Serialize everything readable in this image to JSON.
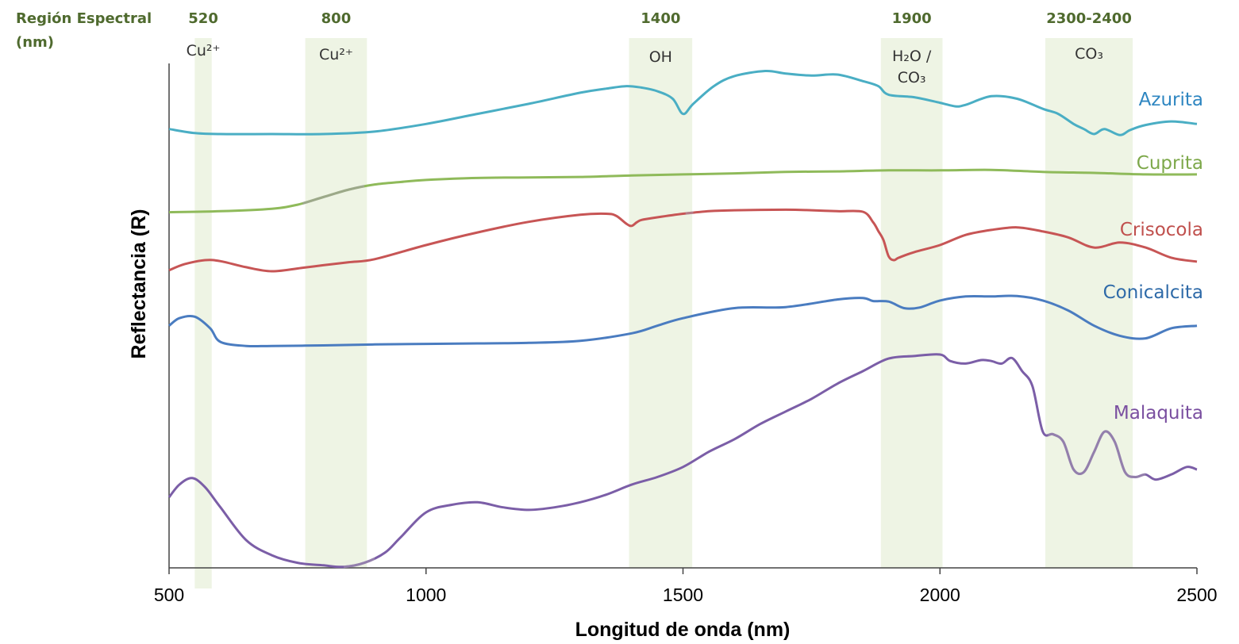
{
  "chart_data": {
    "type": "line",
    "xlabel": "Longitud de onda (nm)",
    "ylabel": "Reflectancia (R)",
    "xlim": [
      500,
      2500
    ],
    "ylim": [
      0,
      100
    ],
    "x_ticks": [
      "500",
      "1000",
      "1500",
      "2000",
      "2500"
    ],
    "region_header": "Región Espectral (nm)",
    "header_color": "#4f6a2e",
    "band_color": "#eef4e4",
    "bands": [
      {
        "center_label": "520",
        "label": "Cu²⁺",
        "x0": 550,
        "x1": 583
      },
      {
        "center_label": "800",
        "label": "Cu²⁺",
        "x0": 765,
        "x1": 885
      },
      {
        "center_label": "1400",
        "label": "OH",
        "x0": 1395,
        "x1": 1518
      },
      {
        "center_label": "1900",
        "label": "H₂O / CO₃",
        "x0": 1885,
        "x1": 2005
      },
      {
        "center_label": "2300-2400",
        "label": "CO₃",
        "x0": 2205,
        "x1": 2375
      }
    ],
    "series": [
      {
        "name": "Azurita",
        "color": "#4aaec4",
        "label_color": "#2e86c1",
        "x": [
          500,
          550,
          600,
          700,
          800,
          900,
          1000,
          1100,
          1200,
          1300,
          1350,
          1390,
          1420,
          1450,
          1480,
          1500,
          1520,
          1560,
          1600,
          1660,
          1700,
          1750,
          1800,
          1850,
          1880,
          1900,
          1950,
          2000,
          2030,
          2050,
          2100,
          2150,
          2200,
          2230,
          2260,
          2280,
          2300,
          2320,
          2350,
          2370,
          2400,
          2450,
          2500
        ],
        "y": [
          87.0,
          86.2,
          86.0,
          86.0,
          86.0,
          86.5,
          88.0,
          90.0,
          92.0,
          94.2,
          95.0,
          95.5,
          95.2,
          94.5,
          93.0,
          90.0,
          92.0,
          95.5,
          97.5,
          98.5,
          98.0,
          97.6,
          97.8,
          96.5,
          95.5,
          93.8,
          93.3,
          92.2,
          91.5,
          91.8,
          93.5,
          93.0,
          91.0,
          90.0,
          88.0,
          87.0,
          86.0,
          87.0,
          85.8,
          86.8,
          87.8,
          88.5,
          88.0
        ]
      },
      {
        "name": "Cuprita",
        "color": "#8fba5a",
        "label_color": "#7da84a",
        "x": [
          500,
          600,
          700,
          750,
          800,
          850,
          900,
          950,
          1000,
          1100,
          1200,
          1300,
          1400,
          1500,
          1600,
          1700,
          1800,
          1900,
          2000,
          2100,
          2200,
          2300,
          2400,
          2500
        ],
        "y": [
          70.5,
          70.7,
          71.2,
          72.0,
          73.5,
          75.0,
          76.0,
          76.5,
          76.9,
          77.3,
          77.4,
          77.5,
          77.8,
          78.0,
          78.2,
          78.5,
          78.6,
          78.8,
          78.8,
          78.9,
          78.5,
          78.3,
          78.0,
          78.0
        ],
        "gray_x0": 760,
        "gray_x1": 880
      },
      {
        "name": "Crisocola",
        "color": "#c75555",
        "label_color": "#c0504d",
        "x": [
          500,
          530,
          570,
          600,
          650,
          700,
          760,
          800,
          850,
          900,
          1000,
          1100,
          1200,
          1300,
          1350,
          1370,
          1390,
          1400,
          1410,
          1420,
          1450,
          1500,
          1550,
          1600,
          1700,
          1750,
          1800,
          1850,
          1870,
          1880,
          1890,
          1900,
          1910,
          1920,
          1950,
          2000,
          2050,
          2100,
          2150,
          2200,
          2250,
          2300,
          2350,
          2400,
          2450,
          2500
        ],
        "y": [
          59.0,
          60.2,
          61.0,
          60.8,
          59.6,
          58.8,
          59.5,
          60.0,
          60.6,
          61.2,
          64.0,
          66.5,
          68.6,
          70.0,
          70.2,
          69.8,
          68.2,
          67.8,
          68.5,
          69.0,
          69.5,
          70.2,
          70.7,
          70.9,
          71.0,
          70.9,
          70.7,
          70.6,
          68.5,
          66.8,
          65.0,
          61.8,
          61.0,
          61.5,
          62.6,
          64.0,
          66.0,
          67.0,
          67.5,
          66.7,
          65.5,
          63.5,
          64.5,
          63.5,
          61.5,
          60.7
        ],
        "gray_x0": 1505,
        "gray_x1": 1520
      },
      {
        "name": "Conicalcita",
        "color": "#4a7cc0",
        "label_color": "#2e6aa8",
        "x": [
          500,
          520,
          550,
          580,
          600,
          650,
          700,
          800,
          900,
          1000,
          1100,
          1200,
          1300,
          1400,
          1450,
          1500,
          1600,
          1700,
          1800,
          1850,
          1870,
          1900,
          1930,
          1960,
          2000,
          2050,
          2100,
          2150,
          2200,
          2250,
          2300,
          2350,
          2400,
          2450,
          2500
        ],
        "y": [
          48.0,
          49.5,
          49.8,
          47.5,
          44.8,
          44.0,
          44.0,
          44.1,
          44.3,
          44.4,
          44.5,
          44.6,
          45.0,
          46.5,
          48.0,
          49.5,
          51.5,
          51.7,
          53.2,
          53.5,
          52.9,
          52.8,
          51.5,
          51.6,
          53.0,
          53.8,
          53.8,
          53.9,
          53.0,
          51.0,
          48.0,
          46.0,
          45.5,
          47.5,
          48.0
        ]
      },
      {
        "name": "Malaquita",
        "color": "#7b5ea7",
        "label_color": "#7a4fa0",
        "x": [
          500,
          520,
          545,
          570,
          600,
          650,
          700,
          750,
          800,
          840,
          880,
          920,
          950,
          1000,
          1050,
          1100,
          1150,
          1200,
          1250,
          1300,
          1350,
          1400,
          1450,
          1500,
          1550,
          1600,
          1650,
          1700,
          1750,
          1800,
          1850,
          1900,
          1950,
          2000,
          2020,
          2050,
          2080,
          2100,
          2120,
          2140,
          2160,
          2180,
          2200,
          2220,
          2240,
          2260,
          2280,
          2300,
          2320,
          2340,
          2360,
          2380,
          2400,
          2420,
          2450,
          2480,
          2500
        ],
        "y": [
          14.0,
          16.5,
          17.8,
          16.0,
          12.0,
          5.5,
          2.5,
          1.0,
          0.5,
          0.2,
          1.0,
          3.0,
          6.0,
          11.0,
          12.5,
          13.0,
          12.0,
          11.5,
          12.0,
          13.0,
          14.5,
          16.5,
          18.0,
          20.0,
          23.0,
          25.5,
          28.5,
          31.0,
          33.5,
          36.5,
          39.0,
          41.5,
          42.0,
          42.3,
          41.0,
          40.5,
          41.2,
          41.0,
          40.5,
          41.6,
          39.0,
          36.0,
          27.0,
          26.5,
          25.0,
          19.5,
          19.0,
          23.0,
          27.0,
          25.0,
          19.0,
          18.0,
          18.5,
          17.5,
          18.5,
          20.0,
          19.5
        ],
        "gray_x0": 840,
        "gray_x1": 900,
        "gray2_x0": 2210,
        "gray2_x1": 2400
      }
    ]
  }
}
